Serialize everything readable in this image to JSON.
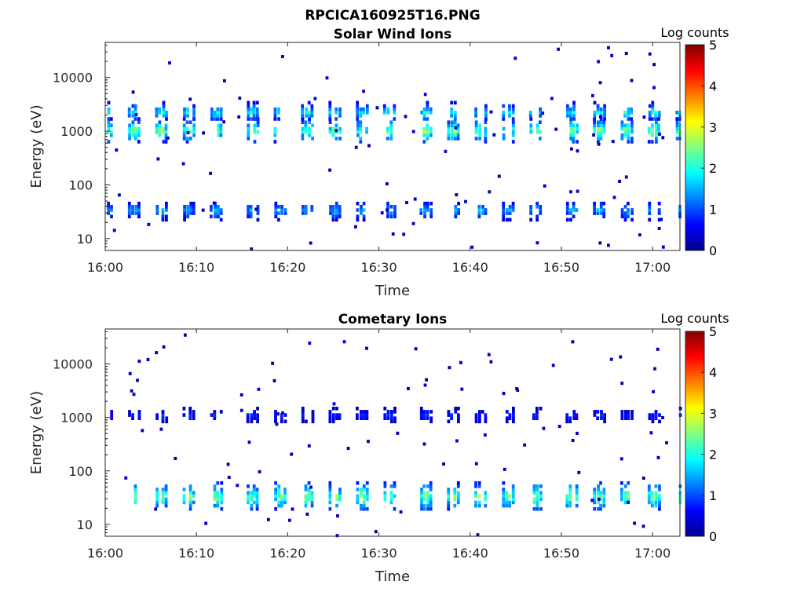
{
  "figure": {
    "title": "RPCICA160925T16.PNG"
  },
  "chart_data": [
    {
      "type": "heatmap",
      "title": "Solar Wind Ions",
      "xlabel": "Time",
      "ylabel": "Energy (eV)",
      "x_ticks": [
        "16:00",
        "16:10",
        "16:20",
        "16:30",
        "16:40",
        "16:50",
        "17:00"
      ],
      "xlim": [
        "16:00",
        "17:03"
      ],
      "y_ticks": [
        "10",
        "100",
        "1000",
        "10000"
      ],
      "y_scale": "log",
      "ylim": [
        6,
        45000
      ],
      "colorbar": {
        "label": "Log counts",
        "ticks": [
          "0",
          "1",
          "2",
          "3",
          "4",
          "5"
        ],
        "range": [
          0,
          5
        ],
        "colormap": "jet"
      },
      "bands": [
        {
          "energy_range": [
            700,
            1500
          ],
          "peak_log_counts": 2.7,
          "description": "main solar wind proton band, pulsed every ~3 min"
        },
        {
          "energy_range": [
            1700,
            3000
          ],
          "peak_log_counts": 2.0,
          "description": "alpha particle band"
        },
        {
          "energy_range": [
            25,
            45
          ],
          "peak_log_counts": 1.6,
          "description": "low energy band"
        }
      ],
      "scan_times": [
        "16:00",
        "16:03",
        "16:06",
        "16:09",
        "16:12",
        "16:16",
        "16:19",
        "16:22",
        "16:25",
        "16:28",
        "16:31",
        "16:35",
        "16:38",
        "16:41",
        "16:44",
        "16:47",
        "16:51",
        "16:54",
        "16:57",
        "17:00",
        "17:03"
      ]
    },
    {
      "type": "heatmap",
      "title": "Cometary Ions",
      "xlabel": "Time",
      "ylabel": "Energy (eV)",
      "x_ticks": [
        "16:00",
        "16:10",
        "16:20",
        "16:30",
        "16:40",
        "16:50",
        "17:00"
      ],
      "xlim": [
        "16:00",
        "17:03"
      ],
      "y_ticks": [
        "10",
        "100",
        "1000",
        "10000"
      ],
      "y_scale": "log",
      "ylim": [
        6,
        45000
      ],
      "colorbar": {
        "label": "Log counts",
        "ticks": [
          "0",
          "1",
          "2",
          "3",
          "4",
          "5"
        ],
        "range": [
          0,
          5
        ],
        "colormap": "jet"
      },
      "bands": [
        {
          "energy_range": [
            20,
            55
          ],
          "peak_log_counts": 2.7,
          "description": "dense low energy cometary ion band"
        },
        {
          "energy_range": [
            900,
            1300
          ],
          "peak_log_counts": 0.9,
          "description": "faint band near 1 keV"
        }
      ],
      "scan_times": [
        "16:00",
        "16:03",
        "16:06",
        "16:09",
        "16:12",
        "16:16",
        "16:19",
        "16:22",
        "16:25",
        "16:28",
        "16:31",
        "16:35",
        "16:38",
        "16:41",
        "16:44",
        "16:47",
        "16:51",
        "16:54",
        "16:57",
        "17:00",
        "17:03"
      ]
    }
  ]
}
